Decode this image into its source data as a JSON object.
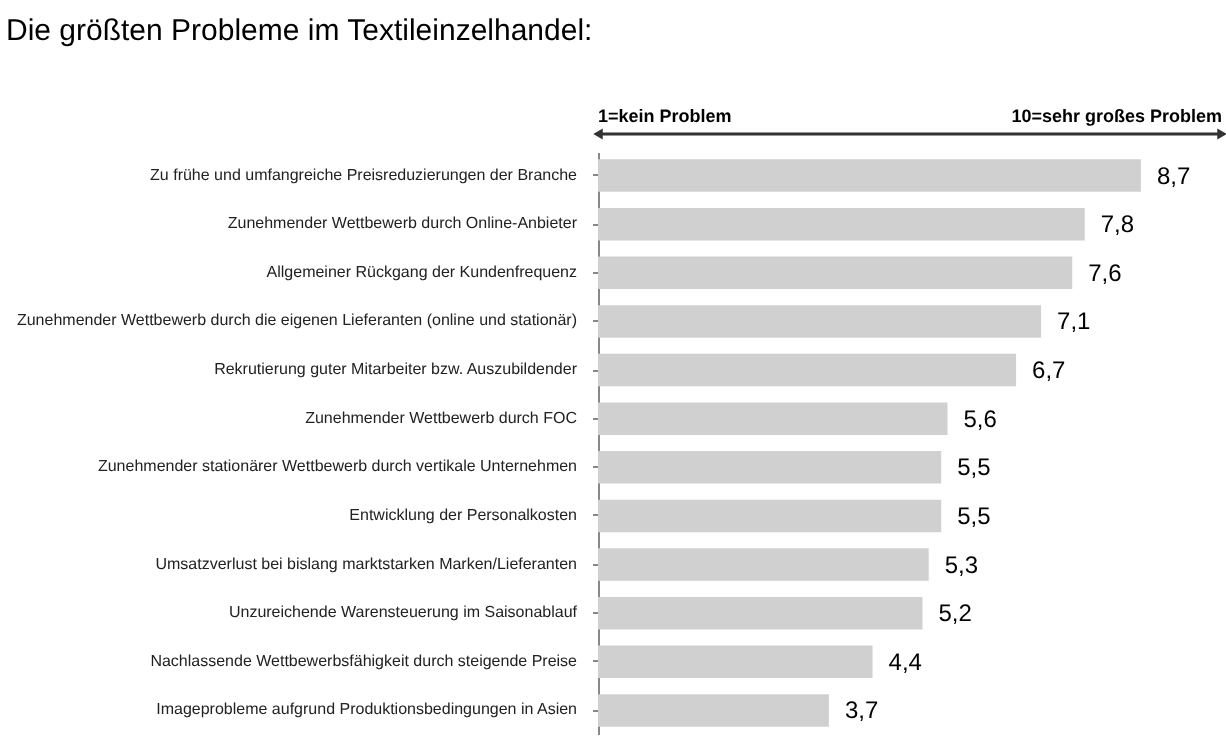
{
  "chart_data": {
    "type": "bar",
    "orientation": "horizontal",
    "title": "Die größten Probleme im Textileinzelhandel:",
    "categories": [
      "Zu frühe und umfangreiche Preisreduzierungen der Branche",
      "Zunehmender Wettbewerb durch Online-Anbieter",
      "Allgemeiner Rückgang der Kundenfrequenz",
      "Zunehmender Wettbewerb durch die eigenen Lieferanten (online und stationär)",
      "Rekrutierung guter Mitarbeiter bzw. Auszubildender",
      "Zunehmender Wettbewerb durch FOC",
      "Zunehmender stationärer Wettbewerb durch vertikale Unternehmen",
      "Entwicklung der Personalkosten",
      "Umsatzverlust bei bislang marktstarken Marken/Lieferanten",
      "Unzureichende Warensteuerung im Saisonablauf",
      "Nachlassende Wettbewerbsfähigkeit durch steigende Preise",
      "Imageprobleme aufgrund Produktionsbedingungen in Asien"
    ],
    "values": [
      8.7,
      7.8,
      7.6,
      7.1,
      6.7,
      5.6,
      5.5,
      5.5,
      5.3,
      5.2,
      4.4,
      3.7
    ],
    "value_labels": [
      "8,7",
      "7,8",
      "7,6",
      "7,1",
      "6,7",
      "5,6",
      "5,5",
      "5,5",
      "5,3",
      "5,2",
      "4,4",
      "3,7"
    ],
    "color": "#d0d0d0",
    "xlim": [
      0,
      10
    ],
    "tick_labels": "y",
    "grid": false,
    "annotations": [
      "1=kein Problem",
      "10=sehr großes Problem"
    ]
  }
}
